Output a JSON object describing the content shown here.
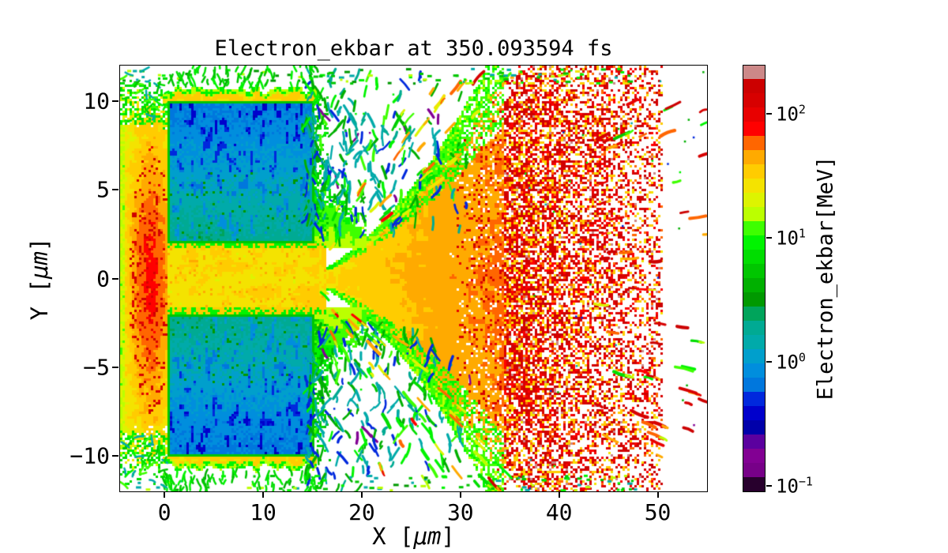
{
  "chart_data": {
    "type": "heatmap",
    "title": "Electron_ekbar at 350.093594 fs",
    "time_fs": 350.093594,
    "xlabel": {
      "prefix": "X [",
      "mu": "μm",
      "suffix": "]"
    },
    "ylabel": {
      "prefix": "Y [",
      "mu": "μm",
      "suffix": "]"
    },
    "xlim": [
      -4.5,
      55
    ],
    "ylim": [
      -12,
      12
    ],
    "x_ticks": [
      {
        "label": "0",
        "value": 0
      },
      {
        "label": "10",
        "value": 10
      },
      {
        "label": "20",
        "value": 20
      },
      {
        "label": "30",
        "value": 30
      },
      {
        "label": "40",
        "value": 40
      },
      {
        "label": "50",
        "value": 50
      }
    ],
    "y_ticks": [
      {
        "label": "10",
        "value": 10
      },
      {
        "label": "5",
        "value": 5
      },
      {
        "label": "0",
        "value": 0
      },
      {
        "label": "−5",
        "value": -5
      },
      {
        "label": "−10",
        "value": -10
      }
    ],
    "colorbar": {
      "label": "Electron_ekbar[MeV]",
      "scale": "log",
      "vmin": 0.09,
      "vmax": 245,
      "n_bands": 30,
      "ticks": [
        {
          "base": "10",
          "exp": "2",
          "value": 100
        },
        {
          "base": "10",
          "exp": "1",
          "value": 10
        },
        {
          "base": "10",
          "exp": "0",
          "value": 1
        },
        {
          "base": "10",
          "exp": "−1",
          "value": 0.1
        }
      ],
      "colormap": {
        "name": "nipy_spectral",
        "stops": [
          [
            0.0,
            "#000000"
          ],
          [
            0.05,
            "#770088"
          ],
          [
            0.1,
            "#880099"
          ],
          [
            0.15,
            "#0000aa"
          ],
          [
            0.2,
            "#0000dd"
          ],
          [
            0.25,
            "#0077dd"
          ],
          [
            0.3,
            "#0099dd"
          ],
          [
            0.35,
            "#00aaaa"
          ],
          [
            0.4,
            "#00aa88"
          ],
          [
            0.45,
            "#009900"
          ],
          [
            0.5,
            "#00bb00"
          ],
          [
            0.55,
            "#00dd00"
          ],
          [
            0.6,
            "#00ff00"
          ],
          [
            0.65,
            "#bbff00"
          ],
          [
            0.7,
            "#eeee00"
          ],
          [
            0.75,
            "#ffcc00"
          ],
          [
            0.8,
            "#ff9900"
          ],
          [
            0.85,
            "#ff0000"
          ],
          [
            0.9,
            "#dd0000"
          ],
          [
            0.95,
            "#cc0000"
          ],
          [
            1.0,
            "#cccccc"
          ]
        ]
      }
    },
    "regions": [
      {
        "name": "target-slab-upper",
        "shape": "rect",
        "x_um": [
          0.3,
          15.2
        ],
        "y_um": [
          2,
          10
        ],
        "energy_MeV": [
          0.5,
          2.9
        ],
        "appearance": "cold target block, blue/teal"
      },
      {
        "name": "target-slab-lower",
        "shape": "rect",
        "x_um": [
          0.3,
          15.2
        ],
        "y_um": [
          -10,
          -2
        ],
        "energy_MeV": [
          0.5,
          2.9
        ],
        "appearance": "cold target block, blue/teal"
      },
      {
        "name": "central-channel",
        "shape": "band",
        "x_um": [
          0.3,
          16.4
        ],
        "y_um": [
          -1.98,
          1.98
        ],
        "energy_MeV": [
          18,
          45
        ],
        "appearance": "hot laser channel, yellow"
      },
      {
        "name": "left-plume",
        "shape": "blob",
        "x_um": [
          -4.5,
          0.3
        ],
        "y_um": [
          -11.5,
          11.5
        ],
        "energy_MeV": [
          7,
          165
        ],
        "appearance": "backside plume, orange with red speckles, green rim"
      },
      {
        "name": "forward-cone",
        "shape": "cone",
        "origin_um": [
          14.5,
          0
        ],
        "x_um": [
          15,
          55
        ],
        "half_angle_deg": 50,
        "energy_MeV": [
          5,
          175
        ],
        "appearance": "expanding jet, yellow-orange core, radial streaks"
      },
      {
        "name": "hot-spot-cluster",
        "shape": "blob",
        "x_um": [
          33,
          50.5
        ],
        "y_um": [
          -8,
          8
        ],
        "energy_MeV": [
          90,
          230
        ],
        "appearance": "dense red streak cluster"
      },
      {
        "name": "filament-halo-upper",
        "shape": "blob",
        "x_um": [
          14.3,
          31.5
        ],
        "y_um": [
          2.5,
          12
        ],
        "energy_MeV": [
          0.15,
          13
        ],
        "appearance": "blue/teal/green filaments"
      },
      {
        "name": "filament-halo-lower",
        "shape": "blob",
        "x_um": [
          14.3,
          31.5
        ],
        "y_um": [
          -12,
          -2.5
        ],
        "energy_MeV": [
          0.15,
          13
        ],
        "appearance": "blue/teal/green filaments"
      },
      {
        "name": "slab-edge-halo",
        "shape": "outline",
        "energy_MeV": [
          8,
          36
        ],
        "appearance": "yellow-orange sheath around target blocks"
      }
    ]
  }
}
